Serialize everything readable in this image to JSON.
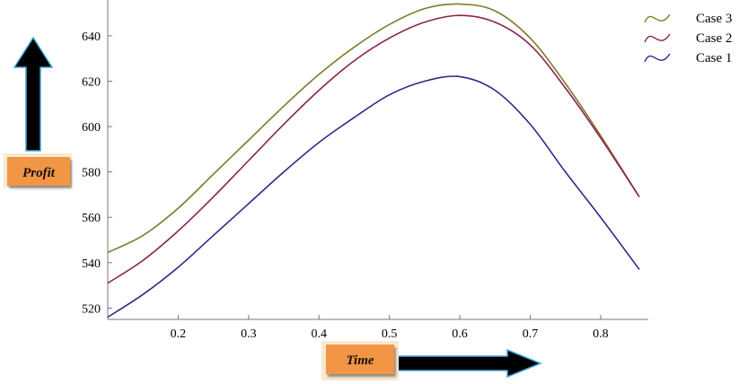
{
  "chart_data": {
    "type": "line",
    "xlabel": "Time",
    "ylabel": "Profit",
    "xlim": [
      0.1,
      0.855
    ],
    "ylim": [
      515,
      655
    ],
    "xticks": [
      0.2,
      0.3,
      0.4,
      0.5,
      0.6,
      0.7,
      0.8
    ],
    "yticks": [
      520,
      540,
      560,
      580,
      600,
      620,
      640
    ],
    "x": [
      0.1,
      0.15,
      0.2,
      0.25,
      0.3,
      0.35,
      0.4,
      0.45,
      0.5,
      0.55,
      0.6,
      0.65,
      0.7,
      0.75,
      0.8,
      0.855
    ],
    "series": [
      {
        "name": "Case 3",
        "color": "#7f7a2a",
        "values": [
          544.5,
          552,
          564,
          579,
          594,
          609,
          623,
          635,
          645,
          652,
          654,
          651,
          639,
          619,
          596,
          569
        ]
      },
      {
        "name": "Case 2",
        "color": "#8b2252",
        "values": [
          531,
          541,
          554,
          569,
          585,
          601,
          616,
          629,
          639,
          646,
          649,
          646,
          636,
          617,
          595,
          569
        ]
      },
      {
        "name": "Case 1",
        "color": "#2a2a8c",
        "values": [
          516,
          526,
          538,
          552,
          566,
          580,
          593,
          604,
          614,
          620,
          622,
          616,
          601,
          580,
          560,
          537
        ]
      }
    ],
    "legend_position": "top-right",
    "grid": false
  }
}
